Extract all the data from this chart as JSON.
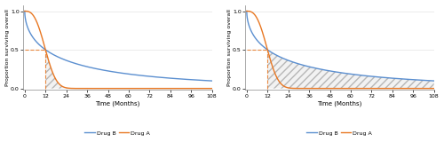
{
  "xlabel": "Time (Months)",
  "ylabel": "Proportion surviving overall",
  "xticks": [
    0,
    12,
    24,
    36,
    48,
    60,
    72,
    84,
    96,
    108
  ],
  "yticks": [
    0.0,
    0.5,
    1.0
  ],
  "ylim": [
    -0.02,
    1.08
  ],
  "xlim": [
    -1,
    108
  ],
  "color_drug_a": "#E87722",
  "color_drug_b": "#5B8FD0",
  "shade_color": "#cccccc",
  "dashed_line_color": "#E87722",
  "legend_labels": [
    "Drug B",
    "Drug A"
  ],
  "bg_color": "#ffffff",
  "grid_color": "#e8e8e8",
  "drug_b_shape": 0.55,
  "drug_b_scale_factor": 17.0,
  "drug_a_shape": 2.8,
  "drug_a_scale_factor": 13.5,
  "median": 12
}
